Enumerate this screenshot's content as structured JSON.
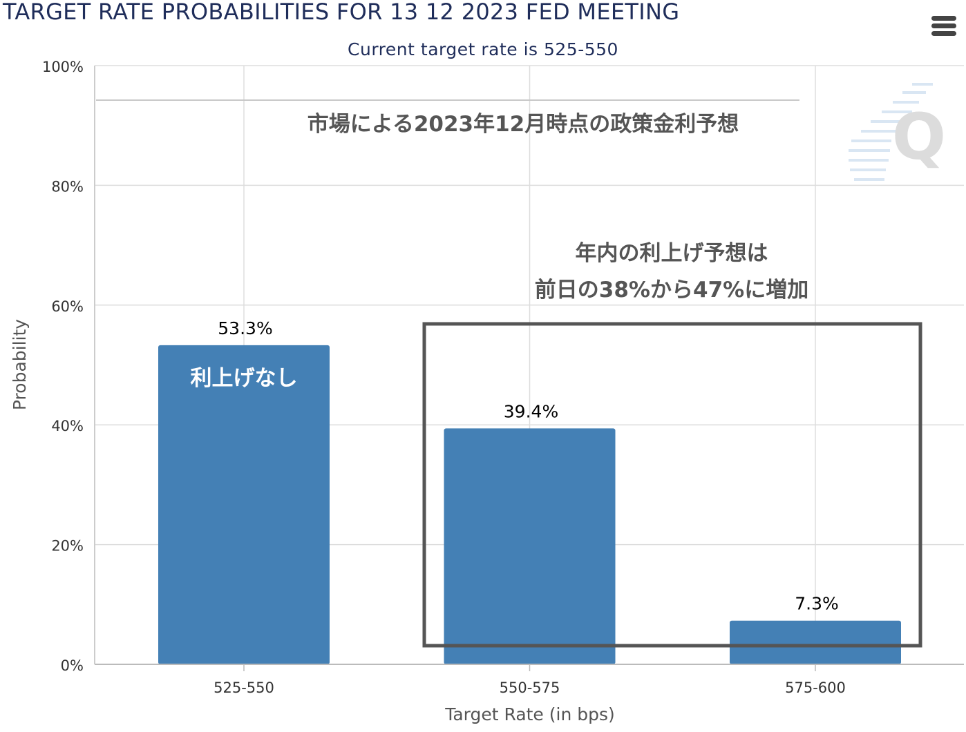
{
  "title": "TARGET RATE PROBABILITIES FOR 13 12 2023 FED MEETING",
  "subtitle": "Current target rate is 525-550",
  "menu_icon": "hamburger-menu-icon",
  "watermark_icon": "q-logo-icon",
  "colors": {
    "bar": "#4480b5",
    "title": "#1f2d5a",
    "annotation": "#555555",
    "grid": "#dddddd",
    "box": "#555555"
  },
  "chart_data": {
    "type": "bar",
    "categories": [
      "525-550",
      "550-575",
      "575-600"
    ],
    "values": [
      53.3,
      39.4,
      7.3
    ],
    "data_labels": [
      "53.3%",
      "39.4%",
      "7.3%"
    ],
    "xlabel": "Target Rate (in bps)",
    "ylabel": "Probability",
    "ylim": [
      0,
      100
    ],
    "yticks": [
      0,
      20,
      40,
      60,
      80,
      100
    ],
    "ytick_labels": [
      "0%",
      "20%",
      "40%",
      "60%",
      "80%",
      "100%"
    ],
    "grid": true,
    "annotations": {
      "header": "市場による2023年12月時点の政策金利予想",
      "box_text": [
        "年内の利上げ予想は",
        "前日の38%から47%に増加"
      ],
      "bar_label": "利上げなし"
    }
  }
}
